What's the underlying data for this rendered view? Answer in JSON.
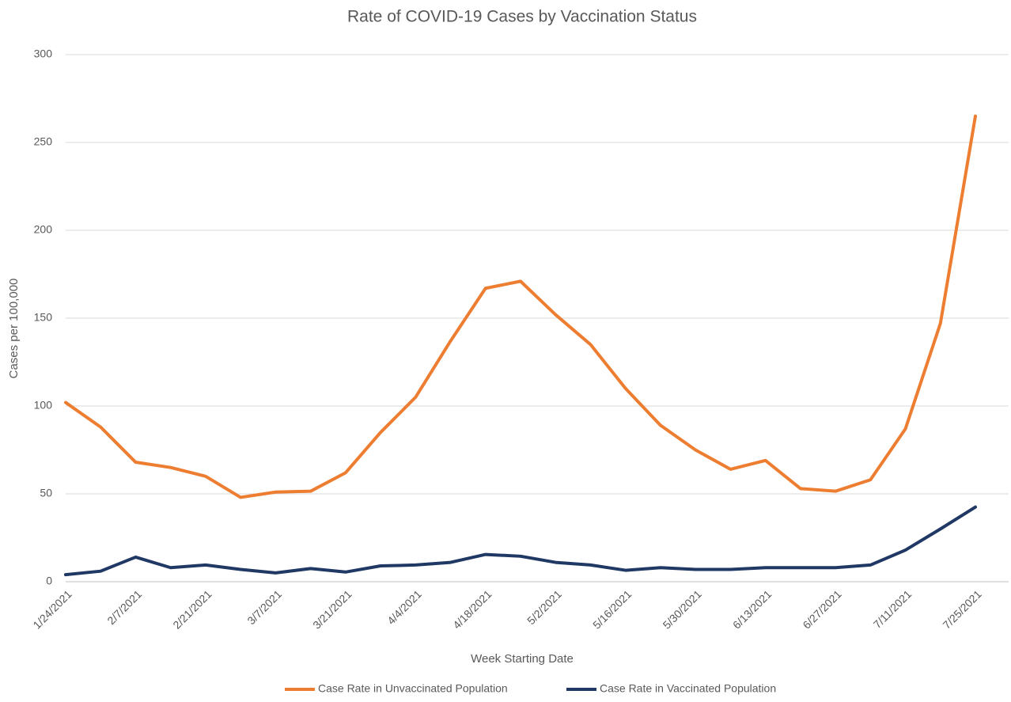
{
  "chart_data": {
    "type": "line",
    "title": "Rate of COVID-19 Cases by Vaccination Status",
    "x_label": "Week Starting Date",
    "y_label": "Cases per 100,000",
    "categories": [
      "1/24/2021",
      null,
      "2/7/2021",
      null,
      "2/21/2021",
      null,
      "3/7/2021",
      null,
      "3/21/2021",
      null,
      "4/4/2021",
      null,
      "4/18/2021",
      null,
      "5/2/2021",
      null,
      "5/16/2021",
      null,
      "5/30/2021",
      null,
      "6/13/2021",
      null,
      "6/27/2021",
      null,
      "7/11/2021",
      null,
      "7/25/2021"
    ],
    "series": [
      {
        "name": "Case Rate in Unvaccinated Population",
        "color": "#ed7d31",
        "values": [
          102,
          88,
          68,
          65,
          60,
          48,
          51,
          51.5,
          62,
          85,
          105,
          137,
          167,
          171,
          152,
          135,
          110,
          89,
          75,
          64,
          69,
          53,
          51.5,
          58,
          87,
          147,
          265
        ]
      },
      {
        "name": "Case Rate in Vaccinated Population",
        "color": "#203864",
        "values": [
          4,
          6,
          14,
          8,
          9.5,
          7,
          5,
          7.5,
          5.5,
          9,
          9.5,
          11,
          15.5,
          14.5,
          11,
          9.5,
          6.5,
          8,
          7,
          7,
          8,
          8,
          8,
          9.5,
          18,
          30,
          42.5
        ]
      }
    ],
    "ylim": [
      0,
      300
    ],
    "yticks": [
      0,
      50,
      100,
      150,
      200,
      250,
      300
    ],
    "grid": true,
    "legend": "bottom"
  }
}
